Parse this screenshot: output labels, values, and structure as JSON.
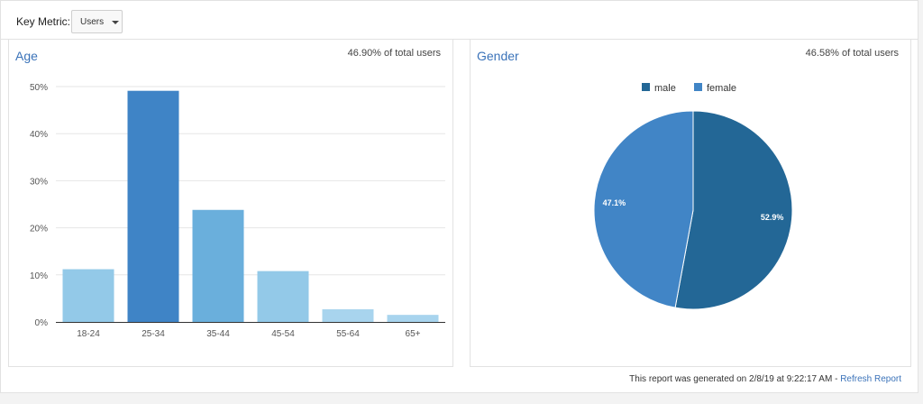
{
  "key_metric": {
    "label": "Key Metric:",
    "selected": "Users"
  },
  "age_panel": {
    "title": "Age",
    "note": "46.90% of total users"
  },
  "gender_panel": {
    "title": "Gender",
    "note": "46.58% of total users"
  },
  "footer": {
    "text": "This report was generated on 2/8/19 at 9:22:17 AM - ",
    "link": "Refresh Report"
  },
  "chart_data": [
    {
      "type": "bar",
      "title": "Age",
      "categories": [
        "18-24",
        "25-34",
        "35-44",
        "45-54",
        "55-64",
        "65+"
      ],
      "values": [
        11.2,
        49.1,
        23.8,
        10.8,
        2.7,
        1.5
      ],
      "yticks": [
        "0%",
        "10%",
        "20%",
        "30%",
        "40%",
        "50%"
      ],
      "ylim": [
        0,
        50
      ],
      "grid": true,
      "colors": [
        "#93c9e8",
        "#3f84c6",
        "#6aafdc",
        "#93c9e8",
        "#a8d4ee",
        "#a8d4ee"
      ]
    },
    {
      "type": "pie",
      "title": "Gender",
      "legend_position": "top",
      "slices": [
        {
          "name": "male",
          "value": 52.9,
          "label": "52.9%",
          "color": "#236796"
        },
        {
          "name": "female",
          "value": 47.1,
          "label": "47.1%",
          "color": "#4185c6"
        }
      ]
    }
  ]
}
